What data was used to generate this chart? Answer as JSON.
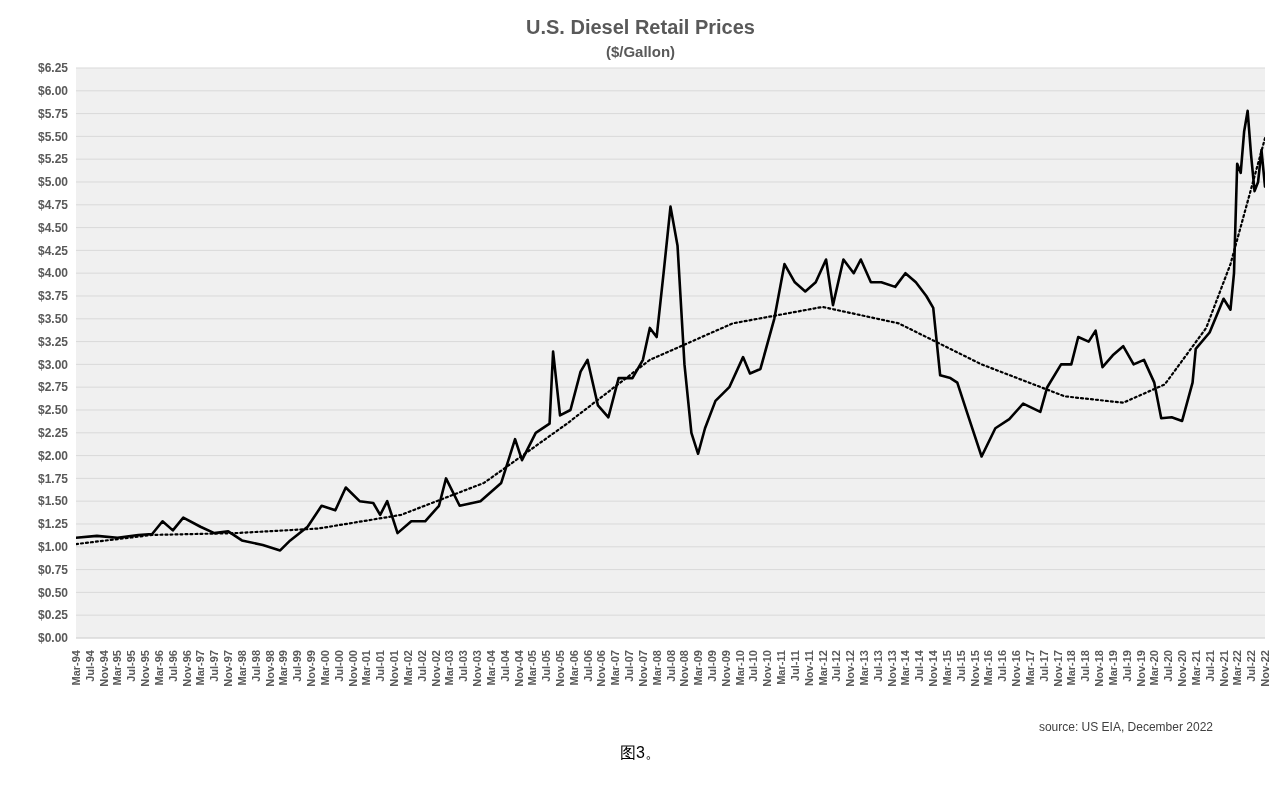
{
  "chart_data": {
    "type": "line",
    "title": "U.S. Diesel Retail Prices",
    "subtitle": "($/Gallon)",
    "annotations": [
      "source: US EIA, December 2022",
      "图3。"
    ],
    "series": [
      {
        "color": "#000000",
        "line_style": "solid",
        "x": [
          "1994-03",
          "1994-09",
          "1995-03",
          "1995-09",
          "1996-01",
          "1996-04",
          "1996-07",
          "1996-10",
          "1997-03",
          "1997-07",
          "1997-11",
          "1998-03",
          "1998-09",
          "1999-02",
          "1999-05",
          "1999-10",
          "2000-02",
          "2000-06",
          "2000-09",
          "2001-01",
          "2001-05",
          "2001-07",
          "2001-09",
          "2001-12",
          "2002-04",
          "2002-08",
          "2002-12",
          "2003-02",
          "2003-06",
          "2003-12",
          "2004-06",
          "2004-10",
          "2004-12",
          "2005-04",
          "2005-08",
          "2005-09",
          "2005-11",
          "2006-02",
          "2006-05",
          "2006-07",
          "2006-10",
          "2007-01",
          "2007-04",
          "2007-08",
          "2007-11",
          "2008-01",
          "2008-03",
          "2008-05",
          "2008-07",
          "2008-09",
          "2008-11",
          "2009-01",
          "2009-03",
          "2009-05",
          "2009-08",
          "2009-12",
          "2010-04",
          "2010-06",
          "2010-09",
          "2011-01",
          "2011-04",
          "2011-07",
          "2011-10",
          "2012-01",
          "2012-04",
          "2012-06",
          "2012-09",
          "2012-12",
          "2013-02",
          "2013-05",
          "2013-08",
          "2013-12",
          "2014-03",
          "2014-06",
          "2014-09",
          "2014-11",
          "2015-01",
          "2015-04",
          "2015-06",
          "2015-09",
          "2016-01",
          "2016-05",
          "2016-09",
          "2017-01",
          "2017-06",
          "2017-08",
          "2017-12",
          "2018-03",
          "2018-05",
          "2018-08",
          "2018-10",
          "2018-12",
          "2019-03",
          "2019-06",
          "2019-09",
          "2019-12",
          "2020-03",
          "2020-05",
          "2020-08",
          "2020-11",
          "2021-02",
          "2021-03",
          "2021-07",
          "2021-11",
          "2022-01",
          "2022-02",
          "2022-03",
          "2022-04",
          "2022-05",
          "2022-06",
          "2022-07",
          "2022-08",
          "2022-09",
          "2022-10",
          "2022-11"
        ],
        "values": [
          1.1,
          1.12,
          1.1,
          1.13,
          1.14,
          1.28,
          1.18,
          1.32,
          1.22,
          1.15,
          1.17,
          1.07,
          1.02,
          0.96,
          1.07,
          1.22,
          1.45,
          1.4,
          1.65,
          1.5,
          1.48,
          1.35,
          1.5,
          1.15,
          1.28,
          1.28,
          1.45,
          1.75,
          1.45,
          1.5,
          1.7,
          2.18,
          1.95,
          2.25,
          2.35,
          3.14,
          2.44,
          2.5,
          2.92,
          3.05,
          2.55,
          2.42,
          2.85,
          2.85,
          3.05,
          3.4,
          3.3,
          4.0,
          4.73,
          4.3,
          3.0,
          2.25,
          2.02,
          2.3,
          2.6,
          2.75,
          3.08,
          2.9,
          2.95,
          3.5,
          4.1,
          3.9,
          3.8,
          3.9,
          4.15,
          3.65,
          4.15,
          4.0,
          4.15,
          3.9,
          3.9,
          3.85,
          4.0,
          3.9,
          3.75,
          3.62,
          2.88,
          2.85,
          2.8,
          2.45,
          1.99,
          2.3,
          2.4,
          2.57,
          2.48,
          2.75,
          3.0,
          3.0,
          3.3,
          3.25,
          3.37,
          2.97,
          3.1,
          3.2,
          3.0,
          3.05,
          2.8,
          2.41,
          2.42,
          2.38,
          2.8,
          3.17,
          3.35,
          3.72,
          3.6,
          4.0,
          5.2,
          5.1,
          5.55,
          5.78,
          5.3,
          4.9,
          5.0,
          5.35,
          4.95
        ]
      },
      {
        "color": "#000000",
        "line_style": "dotted",
        "x": [
          "1994-03",
          "1996-01",
          "1998-01",
          "2000-01",
          "2002-01",
          "2004-01",
          "2006-01",
          "2008-01",
          "2010-01",
          "2012-03",
          "2014-01",
          "2016-01",
          "2018-01",
          "2019-06",
          "2020-06",
          "2021-06",
          "2022-01",
          "2022-11"
        ],
        "values": [
          1.03,
          1.13,
          1.15,
          1.2,
          1.35,
          1.7,
          2.35,
          3.05,
          3.45,
          3.63,
          3.45,
          3.0,
          2.65,
          2.58,
          2.78,
          3.4,
          4.1,
          5.48
        ]
      }
    ],
    "xlim": [
      "1994-03",
      "2022-11"
    ],
    "xticks": [
      {
        "value": "1994-03",
        "label": "Mar-94"
      },
      {
        "value": "1994-07",
        "label": "Jul-94"
      },
      {
        "value": "1994-11",
        "label": "Nov-94"
      },
      {
        "value": "1995-03",
        "label": "Mar-95"
      },
      {
        "value": "1995-07",
        "label": "Jul-95"
      },
      {
        "value": "1995-11",
        "label": "Nov-95"
      },
      {
        "value": "1996-03",
        "label": "Mar-96"
      },
      {
        "value": "1996-07",
        "label": "Jul-96"
      },
      {
        "value": "1996-11",
        "label": "Nov-96"
      },
      {
        "value": "1997-03",
        "label": "Mar-97"
      },
      {
        "value": "1997-07",
        "label": "Jul-97"
      },
      {
        "value": "1997-11",
        "label": "Nov-97"
      },
      {
        "value": "1998-03",
        "label": "Mar-98"
      },
      {
        "value": "1998-07",
        "label": "Jul-98"
      },
      {
        "value": "1998-11",
        "label": "Nov-98"
      },
      {
        "value": "1999-03",
        "label": "Mar-99"
      },
      {
        "value": "1999-07",
        "label": "Jul-99"
      },
      {
        "value": "1999-11",
        "label": "Nov-99"
      },
      {
        "value": "2000-03",
        "label": "Mar-00"
      },
      {
        "value": "2000-07",
        "label": "Jul-00"
      },
      {
        "value": "2000-11",
        "label": "Nov-00"
      },
      {
        "value": "2001-03",
        "label": "Mar-01"
      },
      {
        "value": "2001-07",
        "label": "Jul-01"
      },
      {
        "value": "2001-11",
        "label": "Nov-01"
      },
      {
        "value": "2002-03",
        "label": "Mar-02"
      },
      {
        "value": "2002-07",
        "label": "Jul-02"
      },
      {
        "value": "2002-11",
        "label": "Nov-02"
      },
      {
        "value": "2003-03",
        "label": "Mar-03"
      },
      {
        "value": "2003-07",
        "label": "Jul-03"
      },
      {
        "value": "2003-11",
        "label": "Nov-03"
      },
      {
        "value": "2004-03",
        "label": "Mar-04"
      },
      {
        "value": "2004-07",
        "label": "Jul-04"
      },
      {
        "value": "2004-11",
        "label": "Nov-04"
      },
      {
        "value": "2005-03",
        "label": "Mar-05"
      },
      {
        "value": "2005-07",
        "label": "Jul-05"
      },
      {
        "value": "2005-11",
        "label": "Nov-05"
      },
      {
        "value": "2006-03",
        "label": "Mar-06"
      },
      {
        "value": "2006-07",
        "label": "Jul-06"
      },
      {
        "value": "2006-11",
        "label": "Nov-06"
      },
      {
        "value": "2007-03",
        "label": "Mar-07"
      },
      {
        "value": "2007-07",
        "label": "Jul-07"
      },
      {
        "value": "2007-11",
        "label": "Nov-07"
      },
      {
        "value": "2008-03",
        "label": "Mar-08"
      },
      {
        "value": "2008-07",
        "label": "Jul-08"
      },
      {
        "value": "2008-11",
        "label": "Nov-08"
      },
      {
        "value": "2009-03",
        "label": "Mar-09"
      },
      {
        "value": "2009-07",
        "label": "Jul-09"
      },
      {
        "value": "2009-11",
        "label": "Nov-09"
      },
      {
        "value": "2010-03",
        "label": "Mar-10"
      },
      {
        "value": "2010-07",
        "label": "Jul-10"
      },
      {
        "value": "2010-11",
        "label": "Nov-10"
      },
      {
        "value": "2011-03",
        "label": "Mar-11"
      },
      {
        "value": "2011-07",
        "label": "Jul-11"
      },
      {
        "value": "2011-11",
        "label": "Nov-11"
      },
      {
        "value": "2012-03",
        "label": "Mar-12"
      },
      {
        "value": "2012-07",
        "label": "Jul-12"
      },
      {
        "value": "2012-11",
        "label": "Nov-12"
      },
      {
        "value": "2013-03",
        "label": "Mar-13"
      },
      {
        "value": "2013-07",
        "label": "Jul-13"
      },
      {
        "value": "2013-11",
        "label": "Nov-13"
      },
      {
        "value": "2014-03",
        "label": "Mar-14"
      },
      {
        "value": "2014-07",
        "label": "Jul-14"
      },
      {
        "value": "2014-11",
        "label": "Nov-14"
      },
      {
        "value": "2015-03",
        "label": "Mar-15"
      },
      {
        "value": "2015-07",
        "label": "Jul-15"
      },
      {
        "value": "2015-11",
        "label": "Nov-15"
      },
      {
        "value": "2016-03",
        "label": "Mar-16"
      },
      {
        "value": "2016-07",
        "label": "Jul-16"
      },
      {
        "value": "2016-11",
        "label": "Nov-16"
      },
      {
        "value": "2017-03",
        "label": "Mar-17"
      },
      {
        "value": "2017-07",
        "label": "Jul-17"
      },
      {
        "value": "2017-11",
        "label": "Nov-17"
      },
      {
        "value": "2018-03",
        "label": "Mar-18"
      },
      {
        "value": "2018-07",
        "label": "Jul-18"
      },
      {
        "value": "2018-11",
        "label": "Nov-18"
      },
      {
        "value": "2019-03",
        "label": "Mar-19"
      },
      {
        "value": "2019-07",
        "label": "Jul-19"
      },
      {
        "value": "2019-11",
        "label": "Nov-19"
      },
      {
        "value": "2020-03",
        "label": "Mar-20"
      },
      {
        "value": "2020-07",
        "label": "Jul-20"
      },
      {
        "value": "2020-11",
        "label": "Nov-20"
      },
      {
        "value": "2021-03",
        "label": "Mar-21"
      },
      {
        "value": "2021-07",
        "label": "Jul-21"
      },
      {
        "value": "2021-11",
        "label": "Nov-21"
      },
      {
        "value": "2022-03",
        "label": "Mar-22"
      },
      {
        "value": "2022-07",
        "label": "Jul-22"
      },
      {
        "value": "2022-11",
        "label": "Nov-22"
      }
    ],
    "ylim": [
      0,
      6.25
    ],
    "yticks": [
      {
        "value": 0,
        "label": "$0.00"
      },
      {
        "value": 0.25,
        "label": "$0.25"
      },
      {
        "value": 0.5,
        "label": "$0.50"
      },
      {
        "value": 0.75,
        "label": "$0.75"
      },
      {
        "value": 1,
        "label": "$1.00"
      },
      {
        "value": 1.25,
        "label": "$1.25"
      },
      {
        "value": 1.5,
        "label": "$1.50"
      },
      {
        "value": 1.75,
        "label": "$1.75"
      },
      {
        "value": 2,
        "label": "$2.00"
      },
      {
        "value": 2.25,
        "label": "$2.25"
      },
      {
        "value": 2.5,
        "label": "$2.50"
      },
      {
        "value": 2.75,
        "label": "$2.75"
      },
      {
        "value": 3,
        "label": "$3.00"
      },
      {
        "value": 3.25,
        "label": "$3.25"
      },
      {
        "value": 3.5,
        "label": "$3.50"
      },
      {
        "value": 3.75,
        "label": "$3.75"
      },
      {
        "value": 4,
        "label": "$4.00"
      },
      {
        "value": 4.25,
        "label": "$4.25"
      },
      {
        "value": 4.5,
        "label": "$4.50"
      },
      {
        "value": 4.75,
        "label": "$4.75"
      },
      {
        "value": 5,
        "label": "$5.00"
      },
      {
        "value": 5.25,
        "label": "$5.25"
      },
      {
        "value": 5.5,
        "label": "$5.50"
      },
      {
        "value": 5.75,
        "label": "$5.75"
      },
      {
        "value": 6,
        "label": "$6.00"
      },
      {
        "value": 6.25,
        "label": "$6.25"
      }
    ],
    "grid": "y",
    "marker": "none"
  }
}
